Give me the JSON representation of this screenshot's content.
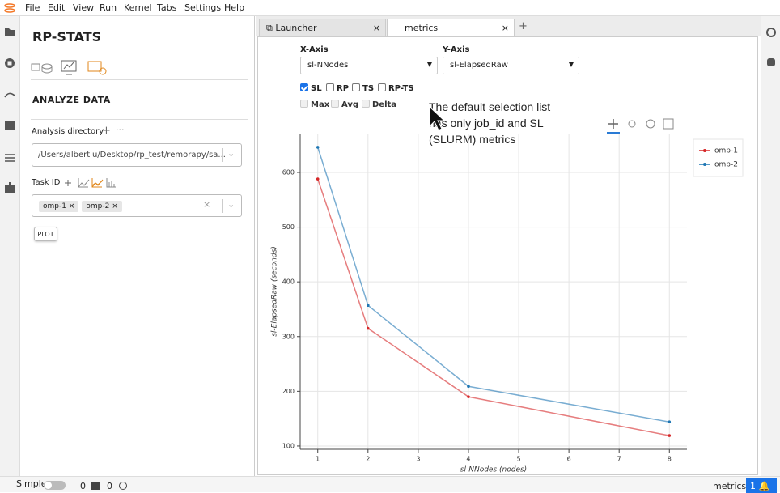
{
  "menu": [
    "File",
    "Edit",
    "View",
    "Run",
    "Kernel",
    "Tabs",
    "Settings",
    "Help"
  ],
  "tabs": [
    "Launcher",
    "metrics"
  ],
  "sidebar": {
    "title": "RP-STATS",
    "section": "ANALYZE DATA",
    "directory_label": "Analysis directory",
    "directory_value": "/Users/albertlu/Desktop/rp_test/remorapy/sa...",
    "task_label": "Task ID",
    "tasks": [
      "omp-1",
      "omp-2"
    ],
    "plot_button": "PLOT"
  },
  "controls": {
    "x_axis_label": "X-Axis",
    "x_axis_value": "sl-NNodes",
    "y_axis_label": "Y-Axis",
    "y_axis_value": "sl-ElapsedRaw",
    "sources": [
      {
        "label": "SL",
        "checked": true
      },
      {
        "label": "RP",
        "checked": false
      },
      {
        "label": "TS",
        "checked": false
      },
      {
        "label": "RP-TS",
        "checked": false
      }
    ],
    "stats": [
      {
        "label": "Max",
        "enabled": false
      },
      {
        "label": "Avg",
        "enabled": false
      },
      {
        "label": "Delta",
        "enabled": false
      }
    ]
  },
  "annotation": [
    "The default selection list",
    "has only job_id and SL",
    "(SLURM) metrics"
  ],
  "chart_data": {
    "type": "line",
    "x_label": "sl-NNodes (nodes)",
    "y_label": "sl-ElapsedRaw (seconds)",
    "x": [
      1,
      2,
      4,
      8
    ],
    "series": [
      {
        "name": "omp-1",
        "color": "#d62728",
        "values": [
          588,
          315,
          190,
          119
        ]
      },
      {
        "name": "omp-2",
        "color": "#1f77b4",
        "values": [
          646,
          357,
          209,
          144
        ]
      }
    ],
    "xlim": [
      0.65,
      8.35
    ],
    "xticks": [
      1,
      2,
      3,
      4,
      5,
      6,
      7,
      8
    ],
    "ylim": [
      94,
      671
    ],
    "yticks": [
      100,
      200,
      300,
      400,
      500,
      600
    ],
    "grid": true,
    "legend": "top-right"
  },
  "status_bar": {
    "mode": "Simple",
    "terminals": 0,
    "kernels": 0,
    "document": "metrics",
    "notifications": 1
  }
}
